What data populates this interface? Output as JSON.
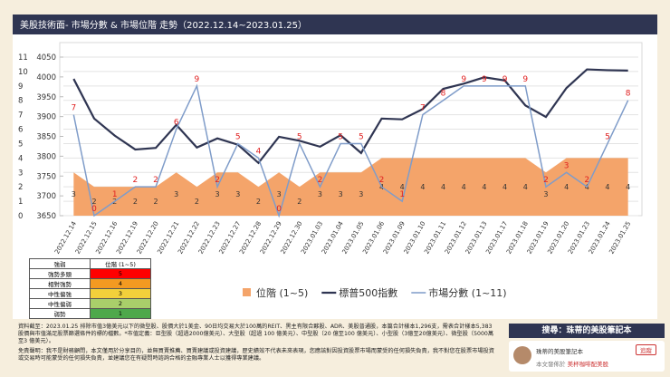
{
  "title": "美股技術面- 市場分數 & 市場位階 走勢（2022.12.14~2023.01.25）",
  "chart_data": {
    "type": "combo",
    "categories": [
      "2022.12.14",
      "2022.12.15",
      "2022.12.16",
      "2022.12.19",
      "2022.12.20",
      "2022.12.21",
      "2022.12.22",
      "2022.12.23",
      "2022.12.27",
      "2022.12.28",
      "2022.12.29",
      "2022.12.30",
      "2023.01.03",
      "2023.01.04",
      "2023.01.05",
      "2023.01.06",
      "2023.01.09",
      "2023.01.10",
      "2023.01.11",
      "2023.01.12",
      "2023.01.13",
      "2023.01.17",
      "2023.01.18",
      "2023.01.19",
      "2023.01.20",
      "2023.01.23",
      "2023.01.24",
      "2023.01.25"
    ],
    "series": [
      {
        "name": "位階 (1~5)",
        "type": "area",
        "color": "#f4a46a",
        "axis": "y",
        "values": [
          3,
          2,
          2,
          2,
          2,
          3,
          2,
          3,
          3,
          2,
          3,
          2,
          3,
          3,
          3,
          4,
          4,
          4,
          4,
          4,
          4,
          4,
          4,
          3,
          4,
          4,
          4,
          4
        ]
      },
      {
        "name": "標普500指數",
        "type": "line",
        "color": "#2f3552",
        "axis": "y2",
        "values": [
          3995,
          3895,
          3852,
          3817,
          3821,
          3879,
          3822,
          3845,
          3829,
          3783,
          3849,
          3839,
          3824,
          3853,
          3808,
          3895,
          3893,
          3919,
          3970,
          3983,
          3999,
          3991,
          3928,
          3899,
          3972,
          4019,
          4017,
          4016
        ]
      },
      {
        "name": "市場分數 (1~11)",
        "type": "line",
        "color": "#7f9cc9",
        "axis": "y",
        "values": [
          7,
          0,
          1,
          2,
          2,
          6,
          9,
          2,
          5,
          4,
          0,
          5,
          2,
          5,
          5,
          2,
          1,
          7,
          8,
          9,
          9,
          9,
          9,
          2,
          3,
          2,
          5,
          8
        ]
      }
    ],
    "ylim": [
      0,
      11
    ],
    "yticks": [
      0,
      1,
      2,
      3,
      4,
      5,
      6,
      7,
      8,
      9,
      10,
      11
    ],
    "y2lim": [
      3650,
      4050
    ],
    "y2ticks": [
      3650,
      3700,
      3750,
      3800,
      3850,
      3900,
      3950,
      4000,
      4050
    ],
    "grid": true,
    "legend": "bottom"
  },
  "table": {
    "header": [
      "強弱",
      "位階 (1~5)"
    ],
    "rows": [
      [
        "強勢多頭",
        5
      ],
      [
        "相對強勢",
        4
      ],
      [
        "中性偏強",
        3
      ],
      [
        "中性偏弱",
        2
      ],
      [
        "弱勢",
        1
      ]
    ],
    "colors": [
      "#ff0000",
      "#f39a21",
      "#f2d03b",
      "#a9cf6a",
      "#4ea84b"
    ]
  },
  "notes": [
    "資料截至：2023.01.25 排除市值3億美元以下的微型股、股價大於1美金、90日均交易大於100萬的REIT、黑主有限合夥股、ADR、美股普通股，本篇合計樣本1,296支，需表合計樣本5,383 股價與市值滿足股票篩選條件的標的檔數。*市值定義：巨型股（超過2000億美元）、大型股（超過 100 億美元）、中型股（20 億至100 億美元）、小型股（3億至20億美元）、微型股（5000萬至3 億美元）。",
    "免責聲明：我不是財務顧問，本文僅用於分享目的，並無買賣推薦、買賣建議或投資建議，歷史績效不代表未來表現，您應該對因投資股票市場而蒙受的任何損失負責，我不對您在股票市場投資或交易時可能蒙受的任何損失負責，並建議您在有疑問時諮詢合格的金融專業人士以獲得專業建議。"
  ],
  "search": "搜尋：珠蒂的美股筆記本",
  "card": {
    "name": "珠蒂的美股筆記本",
    "follow": "追蹤",
    "posted": "本文發佈於",
    "site": "美杯咖啡配美股"
  }
}
